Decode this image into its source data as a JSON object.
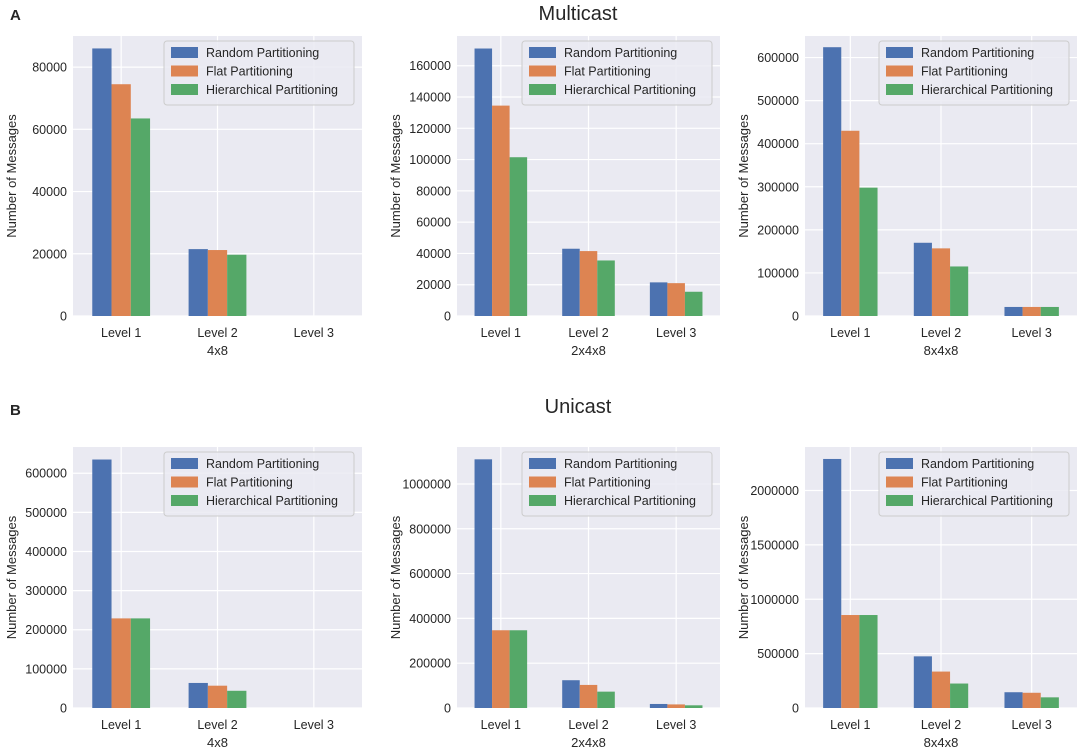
{
  "panels": [
    {
      "letter": "A",
      "title": "Multicast"
    },
    {
      "letter": "B",
      "title": "Unicast"
    }
  ],
  "colors": {
    "random": "#4c72b0",
    "flat": "#dd8452",
    "hier": "#55a868",
    "plot_bg": "#eaeaf2",
    "grid": "#ffffff"
  },
  "chart_data": [
    {
      "type": "bar",
      "panel": "A",
      "xlabel": "4x8",
      "ylabel": "Number of Messages",
      "categories": [
        "Level 1",
        "Level 2",
        "Level 3"
      ],
      "ylim": [
        0,
        90000
      ],
      "yticks": [
        0,
        20000,
        40000,
        60000,
        80000
      ],
      "legend": "top-right",
      "grid": true,
      "series": [
        {
          "name": "Random Partitioning",
          "values": [
            86000,
            21500,
            0
          ]
        },
        {
          "name": "Flat Partitioning",
          "values": [
            74500,
            21200,
            0
          ]
        },
        {
          "name": "Hierarchical Partitioning",
          "values": [
            63500,
            19700,
            0
          ]
        }
      ]
    },
    {
      "type": "bar",
      "panel": "A",
      "xlabel": "2x4x8",
      "ylabel": "Number of Messages",
      "categories": [
        "Level 1",
        "Level 2",
        "Level 3"
      ],
      "ylim": [
        0,
        179000
      ],
      "yticks": [
        0,
        20000,
        40000,
        60000,
        80000,
        100000,
        120000,
        140000,
        160000
      ],
      "legend": "top-right",
      "grid": true,
      "series": [
        {
          "name": "Random Partitioning",
          "values": [
            171000,
            43000,
            21500
          ]
        },
        {
          "name": "Flat Partitioning",
          "values": [
            134500,
            41500,
            21000
          ]
        },
        {
          "name": "Hierarchical Partitioning",
          "values": [
            101500,
            35500,
            15500
          ]
        }
      ]
    },
    {
      "type": "bar",
      "panel": "A",
      "xlabel": "8x4x8",
      "ylabel": "Number of Messages",
      "categories": [
        "Level 1",
        "Level 2",
        "Level 3"
      ],
      "ylim": [
        0,
        650000
      ],
      "yticks": [
        0,
        100000,
        200000,
        300000,
        400000,
        500000,
        600000
      ],
      "legend": "top-right",
      "grid": true,
      "series": [
        {
          "name": "Random Partitioning",
          "values": [
            624000,
            170000,
            21000
          ]
        },
        {
          "name": "Flat Partitioning",
          "values": [
            430000,
            157000,
            21000
          ]
        },
        {
          "name": "Hierarchical Partitioning",
          "values": [
            298000,
            115000,
            21000
          ]
        }
      ]
    },
    {
      "type": "bar",
      "panel": "B",
      "xlabel": "4x8",
      "ylabel": "Number of Messages",
      "categories": [
        "Level 1",
        "Level 2",
        "Level 3"
      ],
      "ylim": [
        0,
        667000
      ],
      "yticks": [
        0,
        100000,
        200000,
        300000,
        400000,
        500000,
        600000
      ],
      "legend": "top-right",
      "grid": true,
      "series": [
        {
          "name": "Random Partitioning",
          "values": [
            635000,
            64000,
            0
          ]
        },
        {
          "name": "Flat Partitioning",
          "values": [
            229000,
            57000,
            0
          ]
        },
        {
          "name": "Hierarchical Partitioning",
          "values": [
            229000,
            44000,
            0
          ]
        }
      ]
    },
    {
      "type": "bar",
      "panel": "B",
      "xlabel": "2x4x8",
      "ylabel": "Number of Messages",
      "categories": [
        "Level 1",
        "Level 2",
        "Level 3"
      ],
      "ylim": [
        0,
        1165000
      ],
      "yticks": [
        0,
        200000,
        400000,
        600000,
        800000,
        1000000
      ],
      "legend": "top-right",
      "grid": true,
      "series": [
        {
          "name": "Random Partitioning",
          "values": [
            1110000,
            124000,
            18000
          ]
        },
        {
          "name": "Flat Partitioning",
          "values": [
            347000,
            103000,
            16000
          ]
        },
        {
          "name": "Hierarchical Partitioning",
          "values": [
            347000,
            73000,
            12000
          ]
        }
      ]
    },
    {
      "type": "bar",
      "panel": "B",
      "xlabel": "8x4x8",
      "ylabel": "Number of Messages",
      "categories": [
        "Level 1",
        "Level 2",
        "Level 3"
      ],
      "ylim": [
        0,
        2400000
      ],
      "yticks": [
        0,
        500000,
        1000000,
        1500000,
        2000000
      ],
      "legend": "top-right",
      "grid": true,
      "series": [
        {
          "name": "Random Partitioning",
          "values": [
            2290000,
            475000,
            145000
          ]
        },
        {
          "name": "Flat Partitioning",
          "values": [
            855000,
            335000,
            140000
          ]
        },
        {
          "name": "Hierarchical Partitioning",
          "values": [
            855000,
            225000,
            98000
          ]
        }
      ]
    }
  ]
}
